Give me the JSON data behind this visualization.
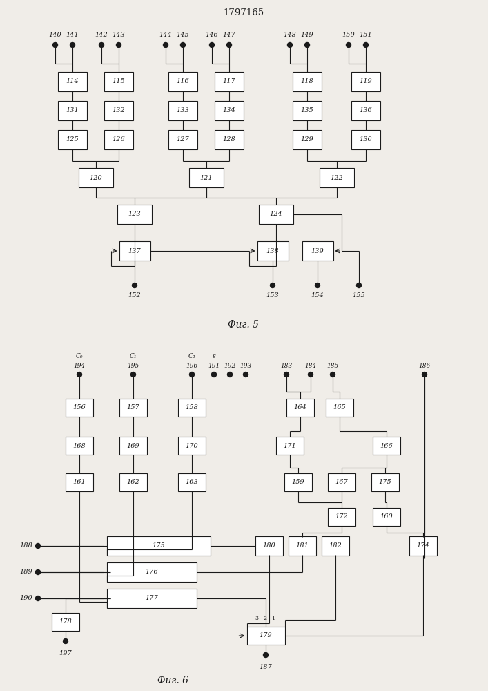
{
  "title": "1797165",
  "fig5_label": "Фиг. 5",
  "fig6_label": "Фиг. 6",
  "bg_color": "#f0ede8",
  "box_color": "#ffffff",
  "line_color": "#1a1a1a",
  "text_color": "#1a1a1a",
  "font_size_label": 7.0,
  "font_size_box": 7.0,
  "font_size_title": 9.5
}
